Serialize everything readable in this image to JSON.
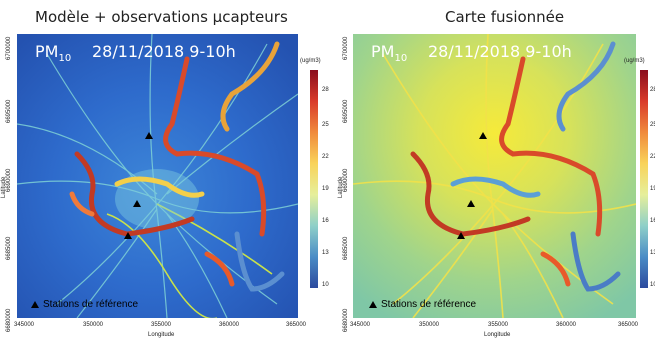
{
  "left_panel": {
    "title": "Modèle + observations µcapteurs",
    "pollutant_main": "PM",
    "pollutant_sub": "10",
    "datetime": "28/11/2018 9-10h",
    "legend_note": "Stations de référence",
    "colorbar_unit": "(ug/m3)",
    "colorbar_ticks": [
      "28",
      "25",
      "22",
      "19",
      "16",
      "13",
      "10"
    ]
  },
  "right_panel": {
    "title": "Carte fusionnée",
    "pollutant_main": "PM",
    "pollutant_sub": "10",
    "datetime": "28/11/2018 9-10h",
    "legend_note": "Stations de référence",
    "colorbar_unit": "(ug/m3)",
    "colorbar_ticks": [
      "28",
      "25",
      "22",
      "19",
      "16",
      "13",
      "10"
    ]
  },
  "axes": {
    "x_label": "Longitude",
    "y_label": "Latitude",
    "x_ticks": [
      "345000",
      "350000",
      "355000",
      "360000",
      "365000"
    ],
    "y_ticks": [
      "6700000",
      "6695000",
      "6690000",
      "6685000",
      "6680000"
    ]
  },
  "colors": {
    "model_background": "#2a63c4",
    "fused_background": "#8fd09a",
    "fused_hotspot": "#f6ea3a",
    "road_lines": "#c9d64e",
    "station_marker": "#000000",
    "scale": [
      "#2c4a9e",
      "#4a8cc6",
      "#8fd0c8",
      "#e6ef9a",
      "#f9d35a",
      "#f08a3c",
      "#d93a2a",
      "#8a0e1e"
    ]
  }
}
